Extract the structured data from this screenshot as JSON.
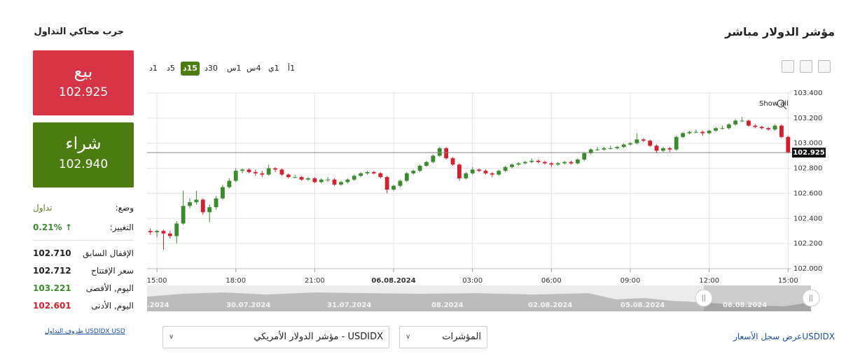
{
  "header": {
    "title": "مؤشر الدولار مباشر"
  },
  "trial": {
    "title": "جرب محاكي التداول",
    "sell": {
      "label": "بيع",
      "price": "102.925"
    },
    "buy": {
      "label": "شراء",
      "price": "102.940"
    },
    "status": {
      "label": "وضع:",
      "value": "تداول"
    },
    "change": {
      "label": "التغيير:",
      "value": "0.21%"
    },
    "stats": [
      {
        "label": "الإقفال السابق",
        "value": "102.710"
      },
      {
        "label": "سعر الإفتتاح",
        "value": "102.712"
      },
      {
        "label": "اليوم, الأقصى",
        "value": "103.221"
      },
      {
        "label": "اليوم, الأدنى",
        "value": "102.601"
      }
    ],
    "conditions_link": "USDIDX USD ظروف التداول"
  },
  "timeframes": [
    "1أ",
    "1ي",
    "4س",
    "1س",
    "30د",
    "15د",
    "5د",
    "1د"
  ],
  "show_all": "Show all",
  "navigator": {
    "labels": [
      ".2024",
      "30.07.2024",
      "31.07.2024",
      "08.2024",
      "02.08.2024",
      "05.08.2024",
      "06.08.2024"
    ]
  },
  "footer": {
    "instrument_select": "USDIDX - مؤشر الدولار الأمريكي",
    "category_select": "المؤشرات",
    "history_link": "USDIDXعرض سجل الأسعار"
  },
  "chart_data": {
    "type": "candlestick",
    "up_color": "#3b8b2e",
    "down_color": "#d1202f",
    "grid": true,
    "ylim": [
      102.0,
      103.4
    ],
    "yticks": [
      {
        "value": 102.0,
        "label": "102.000"
      },
      {
        "value": 102.2,
        "label": "102.200"
      },
      {
        "value": 102.4,
        "label": "102.400"
      },
      {
        "value": 102.6,
        "label": "102.600"
      },
      {
        "value": 102.8,
        "label": "102.800"
      },
      {
        "value": 103.0,
        "label": "103.000"
      },
      {
        "value": 103.2,
        "label": "103.200"
      },
      {
        "value": 103.4,
        "label": "103.400"
      }
    ],
    "xlim": [
      -0.5,
      97.5
    ],
    "xticks": [
      {
        "value": 1,
        "label": "15:00"
      },
      {
        "value": 13,
        "label": "18:00"
      },
      {
        "value": 25,
        "label": "21:00"
      },
      {
        "value": 37,
        "label": "06.08.2024"
      },
      {
        "value": 49,
        "label": "03:00"
      },
      {
        "value": 61,
        "label": "06:00"
      },
      {
        "value": 73,
        "label": "09:00"
      },
      {
        "value": 85,
        "label": "12:00"
      },
      {
        "value": 97,
        "label": "15:00"
      }
    ],
    "price_marker": {
      "value": 102.925,
      "label": "102.925"
    },
    "ohlc": [
      [
        102.3,
        102.32,
        102.27,
        102.29
      ],
      [
        102.29,
        102.31,
        102.25,
        102.3
      ],
      [
        102.3,
        102.31,
        102.15,
        102.28
      ],
      [
        102.28,
        102.3,
        102.24,
        102.26
      ],
      [
        102.26,
        102.38,
        102.2,
        102.36
      ],
      [
        102.36,
        102.62,
        102.35,
        102.5
      ],
      [
        102.5,
        102.56,
        102.48,
        102.53
      ],
      [
        102.53,
        102.62,
        102.51,
        102.55
      ],
      [
        102.55,
        102.56,
        102.43,
        102.45
      ],
      [
        102.45,
        102.51,
        102.37,
        102.49
      ],
      [
        102.49,
        102.58,
        102.47,
        102.56
      ],
      [
        102.56,
        102.67,
        102.55,
        102.65
      ],
      [
        102.65,
        102.72,
        102.64,
        102.7
      ],
      [
        102.7,
        102.8,
        102.69,
        102.78
      ],
      [
        102.78,
        102.8,
        102.76,
        102.79
      ],
      [
        102.79,
        102.8,
        102.76,
        102.77
      ],
      [
        102.77,
        102.79,
        102.74,
        102.76
      ],
      [
        102.76,
        102.78,
        102.73,
        102.75
      ],
      [
        102.75,
        102.83,
        102.74,
        102.8
      ],
      [
        102.8,
        102.81,
        102.77,
        102.79
      ],
      [
        102.79,
        102.8,
        102.74,
        102.75
      ],
      [
        102.75,
        102.76,
        102.72,
        102.73
      ],
      [
        102.73,
        102.75,
        102.72,
        102.73
      ],
      [
        102.73,
        102.74,
        102.7,
        102.71
      ],
      [
        102.71,
        102.73,
        102.7,
        102.72
      ],
      [
        102.72,
        102.73,
        102.68,
        102.69
      ],
      [
        102.69,
        102.72,
        102.68,
        102.71
      ],
      [
        102.71,
        102.73,
        102.69,
        102.71
      ],
      [
        102.71,
        102.72,
        102.66,
        102.67
      ],
      [
        102.67,
        102.7,
        102.66,
        102.69
      ],
      [
        102.69,
        102.72,
        102.68,
        102.71
      ],
      [
        102.71,
        102.75,
        102.7,
        102.74
      ],
      [
        102.74,
        102.77,
        102.73,
        102.76
      ],
      [
        102.76,
        102.78,
        102.75,
        102.77
      ],
      [
        102.77,
        102.78,
        102.75,
        102.76
      ],
      [
        102.76,
        102.77,
        102.72,
        102.73
      ],
      [
        102.73,
        102.74,
        102.6,
        102.63
      ],
      [
        102.63,
        102.67,
        102.62,
        102.66
      ],
      [
        102.66,
        102.71,
        102.65,
        102.7
      ],
      [
        102.7,
        102.77,
        102.69,
        102.76
      ],
      [
        102.76,
        102.79,
        102.75,
        102.78
      ],
      [
        102.78,
        102.83,
        102.77,
        102.82
      ],
      [
        102.82,
        102.86,
        102.81,
        102.85
      ],
      [
        102.85,
        102.91,
        102.84,
        102.9
      ],
      [
        102.9,
        102.97,
        102.89,
        102.96
      ],
      [
        102.96,
        102.97,
        102.87,
        102.88
      ],
      [
        102.88,
        102.89,
        102.82,
        102.83
      ],
      [
        102.83,
        102.84,
        102.7,
        102.72
      ],
      [
        102.72,
        102.77,
        102.71,
        102.76
      ],
      [
        102.76,
        102.81,
        102.75,
        102.79
      ],
      [
        102.79,
        102.8,
        102.77,
        102.78
      ],
      [
        102.78,
        102.79,
        102.75,
        102.76
      ],
      [
        102.76,
        102.77,
        102.73,
        102.75
      ],
      [
        102.75,
        102.79,
        102.74,
        102.78
      ],
      [
        102.78,
        102.82,
        102.77,
        102.81
      ],
      [
        102.81,
        102.84,
        102.8,
        102.83
      ],
      [
        102.83,
        102.85,
        102.82,
        102.84
      ],
      [
        102.84,
        102.86,
        102.83,
        102.85
      ],
      [
        102.85,
        102.88,
        102.84,
        102.86
      ],
      [
        102.86,
        102.87,
        102.84,
        102.85
      ],
      [
        102.85,
        102.86,
        102.83,
        102.84
      ],
      [
        102.84,
        102.85,
        102.81,
        102.83
      ],
      [
        102.83,
        102.85,
        102.82,
        102.84
      ],
      [
        102.84,
        102.86,
        102.83,
        102.85
      ],
      [
        102.85,
        102.86,
        102.83,
        102.84
      ],
      [
        102.84,
        102.88,
        102.83,
        102.87
      ],
      [
        102.87,
        102.93,
        102.86,
        102.92
      ],
      [
        102.92,
        102.96,
        102.91,
        102.95
      ],
      [
        102.95,
        102.97,
        102.94,
        102.95
      ],
      [
        102.95,
        102.97,
        102.94,
        102.96
      ],
      [
        102.96,
        102.98,
        102.95,
        102.96
      ],
      [
        102.96,
        102.98,
        102.95,
        102.97
      ],
      [
        102.97,
        103.0,
        102.96,
        102.99
      ],
      [
        102.99,
        103.01,
        102.98,
        103.0
      ],
      [
        103.0,
        103.08,
        102.99,
        103.03
      ],
      [
        103.03,
        103.04,
        103.01,
        103.02
      ],
      [
        103.02,
        103.03,
        102.97,
        102.98
      ],
      [
        102.98,
        102.99,
        102.92,
        102.94
      ],
      [
        102.94,
        102.97,
        102.93,
        102.96
      ],
      [
        102.96,
        102.97,
        102.93,
        102.95
      ],
      [
        102.95,
        103.06,
        102.94,
        103.05
      ],
      [
        103.05,
        103.09,
        103.04,
        103.08
      ],
      [
        103.08,
        103.1,
        103.07,
        103.09
      ],
      [
        103.09,
        103.11,
        103.08,
        103.09
      ],
      [
        103.09,
        103.1,
        103.06,
        103.08
      ],
      [
        103.08,
        103.11,
        103.07,
        103.1
      ],
      [
        103.1,
        103.13,
        103.09,
        103.12
      ],
      [
        103.12,
        103.14,
        103.11,
        103.12
      ],
      [
        103.12,
        103.16,
        103.11,
        103.15
      ],
      [
        103.15,
        103.19,
        103.14,
        103.18
      ],
      [
        103.18,
        103.21,
        103.17,
        103.18
      ],
      [
        103.18,
        103.19,
        103.13,
        103.14
      ],
      [
        103.14,
        103.15,
        103.12,
        103.13
      ],
      [
        103.13,
        103.14,
        103.11,
        103.12
      ],
      [
        103.12,
        103.13,
        103.1,
        103.11
      ],
      [
        103.11,
        103.15,
        103.1,
        103.14
      ],
      [
        103.14,
        103.15,
        103.04,
        103.05
      ],
      [
        103.05,
        103.06,
        102.92,
        102.925
      ]
    ]
  }
}
